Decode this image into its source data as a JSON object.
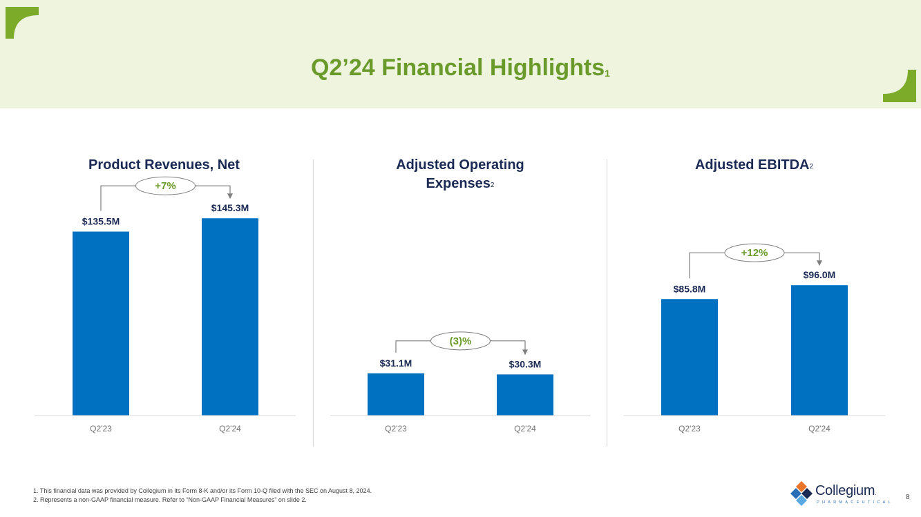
{
  "slide": {
    "title": "Q2’24 Financial Highlights",
    "title_sup": "1",
    "page_number": "8"
  },
  "chart_data": [
    {
      "type": "bar",
      "title": "Product Revenues, Net",
      "title_sup": "",
      "categories": [
        "Q2'23",
        "Q2'24"
      ],
      "values": [
        135.5,
        145.3
      ],
      "value_labels": [
        "$135.5M",
        "$145.3M"
      ],
      "change_label": "+7%",
      "ylim": [
        0,
        150
      ],
      "unit": "$M"
    },
    {
      "type": "bar",
      "title": "Adjusted Operating Expenses",
      "title_lines": [
        "Adjusted Operating",
        "Expenses"
      ],
      "title_sup": "2",
      "categories": [
        "Q2'23",
        "Q2'24"
      ],
      "values": [
        31.1,
        30.3
      ],
      "value_labels": [
        "$31.1M",
        "$30.3M"
      ],
      "change_label": "(3)%",
      "ylim": [
        0,
        150
      ],
      "unit": "$M"
    },
    {
      "type": "bar",
      "title": "Adjusted EBITDA",
      "title_sup": "2",
      "categories": [
        "Q2'23",
        "Q2'24"
      ],
      "values": [
        85.8,
        96.0
      ],
      "value_labels": [
        "$85.8M",
        "$96.0M"
      ],
      "change_label": "+12%",
      "ylim": [
        0,
        150
      ],
      "unit": "$M"
    }
  ],
  "footnotes": [
    "1. This financial data was provided by Collegium in its Form 8-K and/or its Form 10-Q filed with the SEC on August 8, 2024.",
    "2. Represents a non-GAAP financial measure. Refer to “Non-GAAP Financial Measures” on slide 2."
  ],
  "logo": {
    "name": "Collegium",
    "trademark": ".",
    "subtitle": "PHARMACEUTICAL"
  },
  "colors": {
    "bar": "#0070c0",
    "accent_green": "#6a9a2a",
    "header_bg": "#eff4df",
    "navy": "#1b2a55"
  }
}
